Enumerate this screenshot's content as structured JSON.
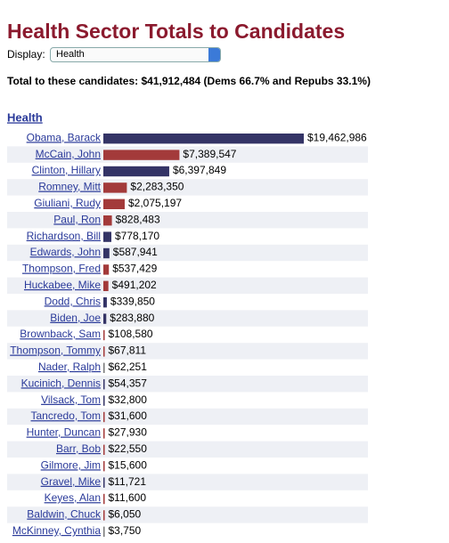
{
  "header": {
    "title": "Health Sector Totals to Candidates",
    "display_label": "Display:",
    "display_value": "Health",
    "summary": "Total to these candidates: $41,912,484 (Dems 66.7% and Repubs 33.1%)"
  },
  "chart_data": {
    "type": "bar",
    "orientation": "horizontal",
    "title": "Health",
    "categories": [
      "Obama, Barack",
      "McCain, John",
      "Clinton, Hillary",
      "Romney, Mitt",
      "Giuliani, Rudy",
      "Paul, Ron",
      "Richardson, Bill",
      "Edwards, John",
      "Thompson, Fred",
      "Huckabee, Mike",
      "Dodd, Chris",
      "Biden, Joe",
      "Brownback, Sam",
      "Thompson, Tommy",
      "Nader, Ralph",
      "Kucinich, Dennis",
      "Vilsack, Tom",
      "Tancredo, Tom",
      "Hunter, Duncan",
      "Barr, Bob",
      "Gilmore, Jim",
      "Gravel, Mike",
      "Keyes, Alan",
      "Baldwin, Chuck",
      "McKinney, Cynthia"
    ],
    "values": [
      19462986,
      7389547,
      6397849,
      2283350,
      2075197,
      828483,
      778170,
      587941,
      537429,
      491202,
      339850,
      283880,
      108580,
      67811,
      62251,
      54357,
      32800,
      31600,
      27930,
      22550,
      15600,
      11721,
      11600,
      6050,
      3750
    ],
    "value_labels": [
      "$19,462,986",
      "$7,389,547",
      "$6,397,849",
      "$2,283,350",
      "$2,075,197",
      "$828,483",
      "$778,170",
      "$587,941",
      "$537,429",
      "$491,202",
      "$339,850",
      "$283,880",
      "$108,580",
      "$67,811",
      "$62,251",
      "$54,357",
      "$32,800",
      "$31,600",
      "$27,930",
      "$22,550",
      "$15,600",
      "$11,721",
      "$11,600",
      "$6,050",
      "$3,750"
    ],
    "colors": [
      "#343466",
      "#a33a3a",
      "#343466",
      "#a33a3a",
      "#a33a3a",
      "#a33a3a",
      "#343466",
      "#343466",
      "#a33a3a",
      "#a33a3a",
      "#343466",
      "#343466",
      "#a33a3a",
      "#a33a3a",
      "#777777",
      "#343466",
      "#343466",
      "#a33a3a",
      "#a33a3a",
      "#a33a3a",
      "#a33a3a",
      "#343466",
      "#a33a3a",
      "#a33a3a",
      "#777777"
    ]
  }
}
